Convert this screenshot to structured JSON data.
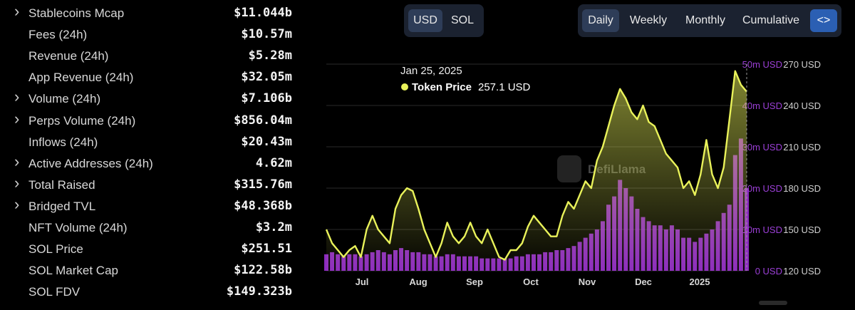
{
  "metrics": [
    {
      "label": "Stablecoins Mcap",
      "value": "$11.044b",
      "expandable": true
    },
    {
      "label": "Fees (24h)",
      "value": "$10.57m",
      "expandable": false
    },
    {
      "label": "Revenue (24h)",
      "value": "$5.28m",
      "expandable": false
    },
    {
      "label": "App Revenue (24h)",
      "value": "$32.05m",
      "expandable": false
    },
    {
      "label": "Volume (24h)",
      "value": "$7.106b",
      "expandable": true
    },
    {
      "label": "Perps Volume (24h)",
      "value": "$856.04m",
      "expandable": true
    },
    {
      "label": "Inflows (24h)",
      "value": "$20.43m",
      "expandable": false
    },
    {
      "label": "Active Addresses (24h)",
      "value": "4.62m",
      "expandable": true
    },
    {
      "label": "Total Raised",
      "value": "$315.76m",
      "expandable": true
    },
    {
      "label": "Bridged TVL",
      "value": "$48.368b",
      "expandable": true
    },
    {
      "label": "NFT Volume (24h)",
      "value": "$3.2m",
      "expandable": false
    },
    {
      "label": "SOL Price",
      "value": "$251.51",
      "expandable": false
    },
    {
      "label": "SOL Market Cap",
      "value": "$122.58b",
      "expandable": false
    },
    {
      "label": "SOL FDV",
      "value": "$149.323b",
      "expandable": false
    }
  ],
  "icons": {
    "expand": "chevron-right-icon",
    "code": "code-brackets-icon",
    "watermark": "defillama-logo"
  },
  "currency_toggle": {
    "options": [
      "USD",
      "SOL"
    ],
    "selected": "USD"
  },
  "period_toggle": {
    "options": [
      "Daily",
      "Weekly",
      "Monthly",
      "Cumulative"
    ],
    "selected": "Daily",
    "code_label": "<>"
  },
  "colors": {
    "price_line": "#e9f25a",
    "volume_bars": "#a433e0",
    "background": "#000000",
    "active_button": "#2e3d58",
    "code_button": "#2b5fb3"
  },
  "watermark": "DefiLlama",
  "tooltip": {
    "date": "Jan 25, 2025",
    "series": "Token Price",
    "value": "257.1 USD"
  },
  "chart_data": {
    "type": "line",
    "x_labels": [
      "Jul",
      "Aug",
      "Sep",
      "Oct",
      "Nov",
      "Dec",
      "2025"
    ],
    "y_left_ticks": [
      "0 USD",
      "10m USD",
      "20m USD",
      "30m USD",
      "40m USD",
      "50m USD"
    ],
    "y_right_ticks": [
      "120 USD",
      "150 USD",
      "180 USD",
      "210 USD",
      "240 USD",
      "270 USD"
    ],
    "y_left_range": [
      0,
      50000000
    ],
    "y_right_range": [
      120,
      270
    ],
    "grid": true,
    "series": [
      {
        "name": "Token Price",
        "axis": "right",
        "kind": "line",
        "values": [
          150,
          140,
          135,
          130,
          135,
          138,
          130,
          150,
          160,
          150,
          145,
          140,
          165,
          175,
          180,
          178,
          165,
          150,
          140,
          130,
          140,
          155,
          145,
          140,
          145,
          155,
          145,
          140,
          150,
          140,
          130,
          128,
          135,
          135,
          140,
          152,
          160,
          155,
          150,
          145,
          145,
          160,
          170,
          165,
          175,
          185,
          180,
          200,
          210,
          225,
          240,
          252,
          245,
          235,
          230,
          240,
          228,
          225,
          215,
          205,
          200,
          195,
          180,
          185,
          175,
          190,
          215,
          190,
          180,
          195,
          230,
          265,
          255,
          250
        ]
      },
      {
        "kind": "bar",
        "axis": "left",
        "values": [
          4,
          4.5,
          4,
          3.5,
          4,
          4,
          3.5,
          4,
          4.5,
          5,
          4.5,
          4,
          5,
          5.5,
          5,
          4.5,
          4.5,
          4,
          4,
          3.5,
          3.5,
          4,
          4,
          3.5,
          3.5,
          3.5,
          3.5,
          3,
          3,
          3,
          3,
          3,
          3,
          3.5,
          3.5,
          4,
          4,
          4,
          4.5,
          4.5,
          5,
          5,
          5.5,
          6,
          7,
          8,
          9,
          10,
          12,
          16,
          18,
          22,
          20,
          18,
          15,
          13,
          12,
          11,
          11,
          10,
          11,
          10,
          8,
          8,
          7,
          8,
          9,
          10,
          12,
          14,
          16,
          28,
          32,
          20
        ]
      }
    ]
  }
}
